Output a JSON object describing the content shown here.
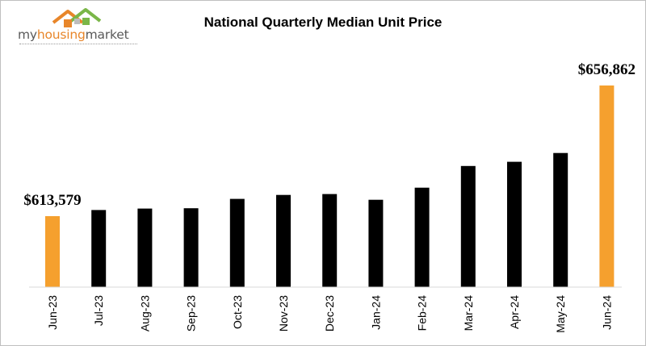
{
  "logo": {
    "wordmark_my": "my",
    "wordmark_housing": "housing",
    "wordmark_market": "market",
    "colors": {
      "roof_orange": "#e8862a",
      "roof_green": "#7ab648",
      "text_gray": "#595959"
    }
  },
  "chart_data": {
    "type": "bar",
    "title": "National Quarterly Median Unit Price",
    "xlabel": "",
    "ylabel": "",
    "categories": [
      "Jun-23",
      "Jul-23",
      "Aug-23",
      "Sep-23",
      "Oct-23",
      "Nov-23",
      "Dec-23",
      "Jan-24",
      "Feb-24",
      "Mar-24",
      "Apr-24",
      "May-24",
      "Jun-24"
    ],
    "values": [
      613579,
      615600,
      616100,
      616200,
      619300,
      620600,
      620900,
      619000,
      623000,
      630200,
      631600,
      634500,
      656862
    ],
    "highlight_indices": [
      0,
      12
    ],
    "data_labels": {
      "0": "$613,579",
      "12": "$656,862"
    },
    "colors": {
      "default": "#000000",
      "highlight": "#f5a02e"
    },
    "grid": false,
    "legend": "none"
  }
}
